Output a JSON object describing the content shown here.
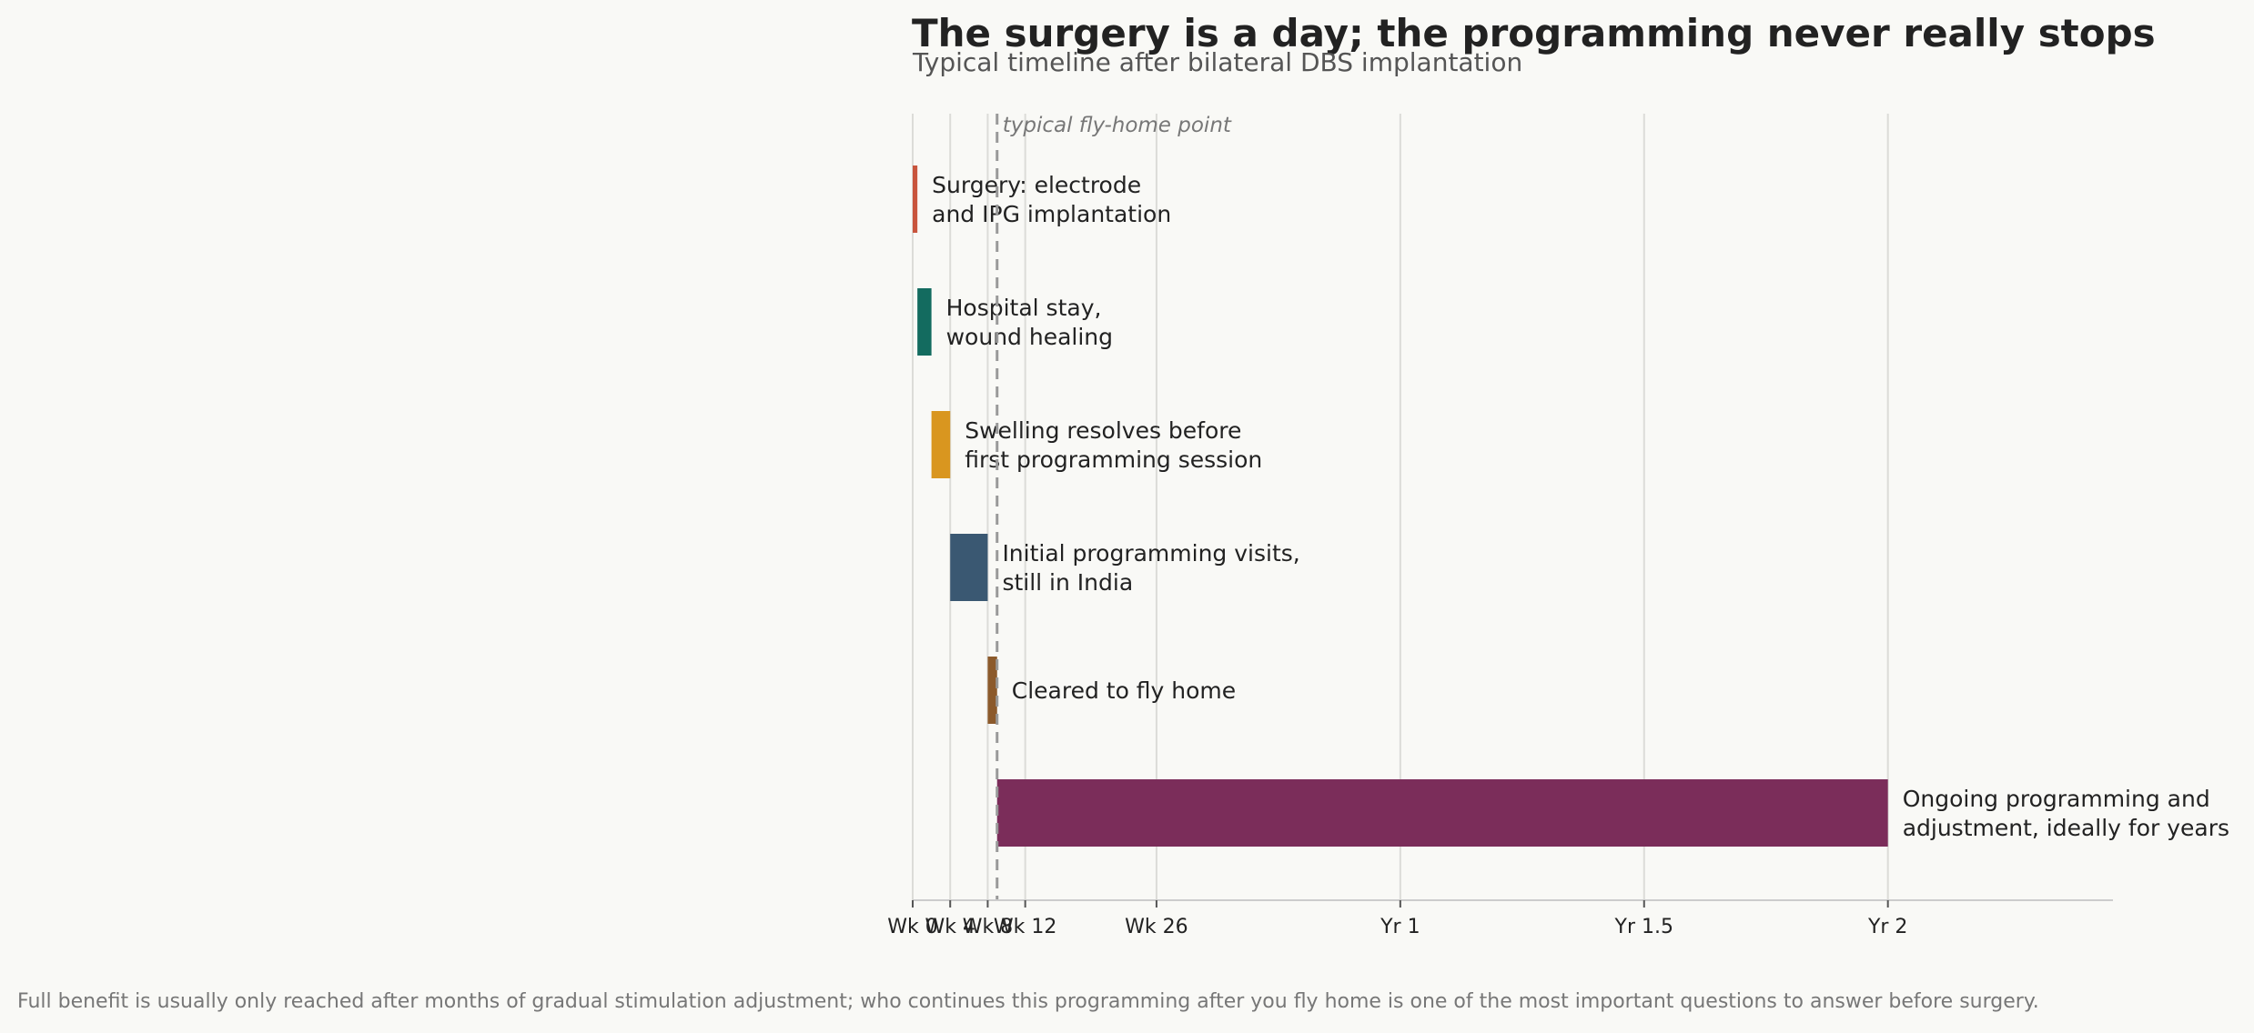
{
  "chart_data": {
    "type": "bar",
    "orientation": "horizontal-timeline",
    "title": "The surgery is a day; the programming never really stops",
    "subtitle": "Typical timeline after bilateral DBS implantation",
    "footnote": "Full benefit is usually only reached after months of gradual stimulation adjustment; who continues this programming after you fly home is one of the most important questions to answer before surgery.",
    "x_unit": "weeks",
    "xlim": [
      0,
      128
    ],
    "grid": "vertical",
    "x_ticks": [
      {
        "value": 0,
        "label": "Wk 0"
      },
      {
        "value": 4,
        "label": "Wk 4"
      },
      {
        "value": 8,
        "label": "Wk 8"
      },
      {
        "value": 12,
        "label": "Wk 12"
      },
      {
        "value": 26,
        "label": "Wk 26"
      },
      {
        "value": 52,
        "label": "Yr 1"
      },
      {
        "value": 78,
        "label": "Yr 1.5"
      },
      {
        "value": 104,
        "label": "Yr 2"
      }
    ],
    "bars": [
      {
        "label": [
          "Surgery: electrode",
          "and IPG implantation"
        ],
        "start": 0,
        "end": 0.5,
        "color": "#c8553d"
      },
      {
        "label": [
          "Hospital stay,",
          "wound healing"
        ],
        "start": 0.5,
        "end": 2,
        "color": "#136b5f"
      },
      {
        "label": [
          "Swelling resolves before",
          "first programming session"
        ],
        "start": 2,
        "end": 4,
        "color": "#d9961f"
      },
      {
        "label": [
          "Initial programming visits,",
          "still in India"
        ],
        "start": 4,
        "end": 8,
        "color": "#3a5872"
      },
      {
        "label": [
          "Cleared to fly home"
        ],
        "start": 8,
        "end": 9,
        "color": "#8c5a2b"
      },
      {
        "label": [
          "Ongoing programming and",
          "adjustment, ideally for years"
        ],
        "start": 9,
        "end": 104,
        "color": "#7b2d5a"
      }
    ],
    "reference_line": {
      "value": 9,
      "label": "typical fly-home point",
      "style": "dashed",
      "color": "#999999"
    }
  }
}
